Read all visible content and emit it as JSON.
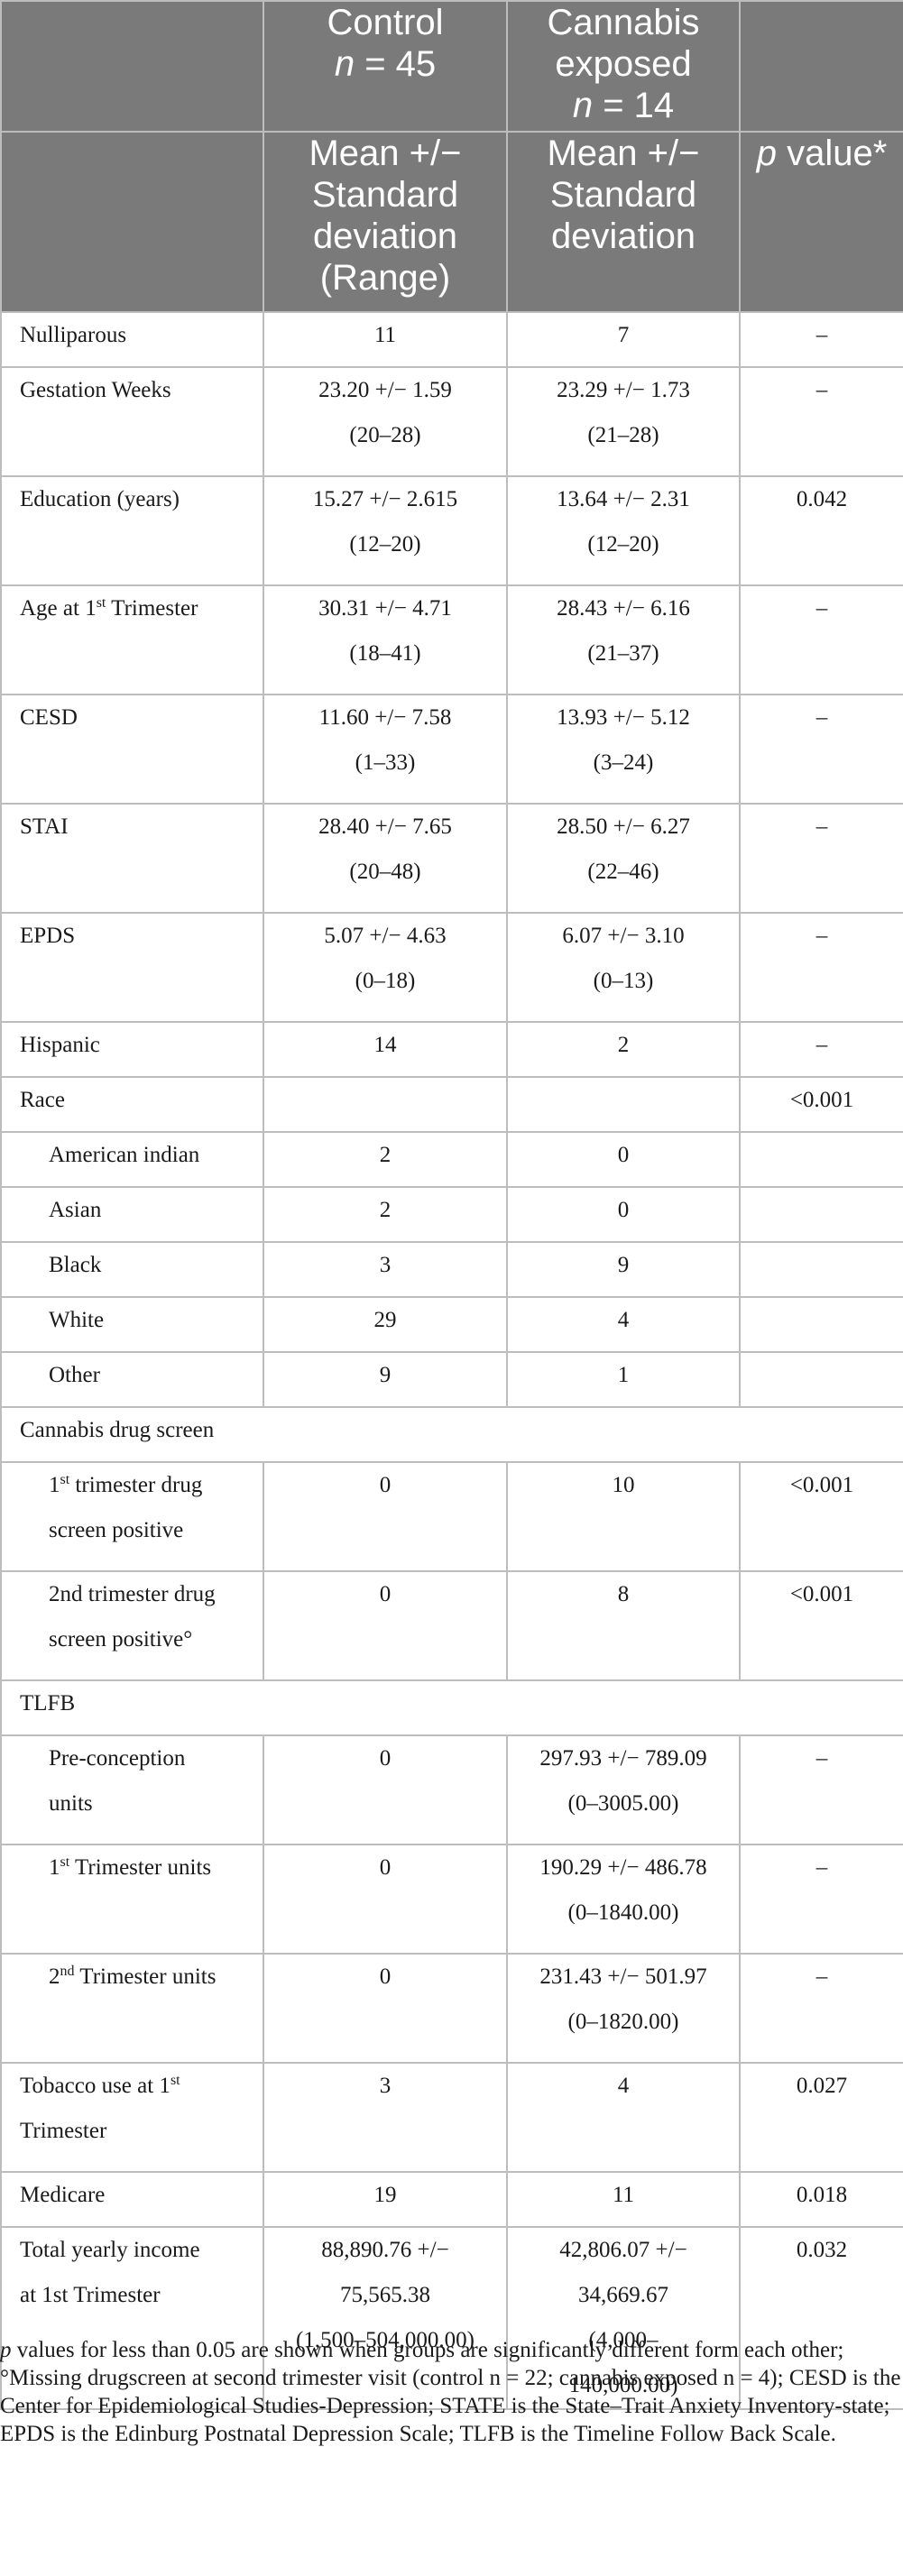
{
  "header": {
    "control": {
      "line1": "Control",
      "n_label": "n",
      "n_value": " = 45"
    },
    "cannabis": {
      "line1": "Cannabis",
      "line2": "exposed",
      "n_label": "n",
      "n_value": " = 14"
    },
    "sub_control": [
      "Mean +/−",
      "Standard",
      "deviation",
      "(Range)"
    ],
    "sub_cannabis": [
      "Mean +/−",
      "Standard",
      "deviation"
    ],
    "pvalue": {
      "p": "p",
      "rest": " value*"
    }
  },
  "rows": [
    {
      "label": [
        "Nulliparous"
      ],
      "control": [
        "11"
      ],
      "cannabis": [
        "7"
      ],
      "p": "–"
    },
    {
      "label": [
        "Gestation Weeks"
      ],
      "control": [
        "23.20 +/− 1.59",
        "(20–28)"
      ],
      "cannabis": [
        "23.29 +/− 1.73",
        "(21–28)"
      ],
      "p": "–"
    },
    {
      "label": [
        "Education (years)"
      ],
      "control": [
        "15.27 +/− 2.615",
        "(12–20)"
      ],
      "cannabis": [
        "13.64 +/− 2.31",
        "(12–20)"
      ],
      "p": "0.042"
    },
    {
      "label_pre": "Age at 1",
      "label_sup": "st",
      "label_post": " Trimester",
      "control": [
        "30.31 +/− 4.71",
        "(18–41)"
      ],
      "cannabis": [
        "28.43 +/− 6.16",
        "(21–37)"
      ],
      "p": "–"
    },
    {
      "label": [
        "CESD"
      ],
      "control": [
        "11.60 +/− 7.58",
        "(1–33)"
      ],
      "cannabis": [
        "13.93 +/− 5.12",
        "(3–24)"
      ],
      "p": "–"
    },
    {
      "label": [
        "STAI"
      ],
      "control": [
        "28.40 +/− 7.65",
        "(20–48)"
      ],
      "cannabis": [
        "28.50 +/− 6.27",
        "(22–46)"
      ],
      "p": "–"
    },
    {
      "label": [
        "EPDS"
      ],
      "control": [
        "5.07 +/− 4.63",
        "(0–18)"
      ],
      "cannabis": [
        "6.07 +/− 3.10",
        "(0–13)"
      ],
      "p": "–"
    },
    {
      "label": [
        "Hispanic"
      ],
      "control": [
        "14"
      ],
      "cannabis": [
        "2"
      ],
      "p": "–"
    },
    {
      "label": [
        "Race"
      ],
      "control": [
        ""
      ],
      "cannabis": [
        ""
      ],
      "p": "<0.001"
    },
    {
      "label": [
        "American indian"
      ],
      "control": [
        "2"
      ],
      "cannabis": [
        "0"
      ],
      "p": ""
    },
    {
      "label": [
        "Asian"
      ],
      "control": [
        "2"
      ],
      "cannabis": [
        "0"
      ],
      "p": ""
    },
    {
      "label": [
        "Black"
      ],
      "control": [
        "3"
      ],
      "cannabis": [
        "9"
      ],
      "p": ""
    },
    {
      "label": [
        "White"
      ],
      "control": [
        "29"
      ],
      "cannabis": [
        "4"
      ],
      "p": ""
    },
    {
      "label": [
        "Other"
      ],
      "control": [
        "9"
      ],
      "cannabis": [
        "1"
      ],
      "p": ""
    },
    {
      "label": [
        "Cannabis drug screen"
      ]
    },
    {
      "label_pre": "1",
      "label_sup": "st",
      "label_post": " trimester drug",
      "label_line2": "screen positive",
      "control": [
        "0"
      ],
      "cannabis": [
        "10"
      ],
      "p": "<0.001"
    },
    {
      "label": [
        "2nd trimester drug",
        "screen positive°"
      ],
      "control": [
        "0"
      ],
      "cannabis": [
        "8"
      ],
      "p": "<0.001"
    },
    {
      "label": [
        "TLFB"
      ]
    },
    {
      "label": [
        "Pre-conception",
        "units"
      ],
      "control": [
        "0"
      ],
      "cannabis": [
        "297.93 +/− 789.09",
        "(0–3005.00)"
      ],
      "p": "–"
    },
    {
      "label_pre": "1",
      "label_sup": "st",
      "label_post": " Trimester units",
      "control": [
        "0"
      ],
      "cannabis": [
        "190.29 +/− 486.78",
        "(0–1840.00)"
      ],
      "p": "–"
    },
    {
      "label_pre": "2",
      "label_sup": "nd",
      "label_post": " Trimester units",
      "control": [
        "0"
      ],
      "cannabis": [
        "231.43 +/− 501.97",
        "(0–1820.00)"
      ],
      "p": "–"
    },
    {
      "label_pre": "Tobacco use at 1",
      "label_sup": "st",
      "label_post": "",
      "label_line2": "Trimester",
      "control": [
        "3"
      ],
      "cannabis": [
        "4"
      ],
      "p": "0.027"
    },
    {
      "label": [
        "Medicare"
      ],
      "control": [
        "19"
      ],
      "cannabis": [
        "11"
      ],
      "p": "0.018"
    },
    {
      "label": [
        "Total yearly income",
        "at 1st Trimester"
      ],
      "control": [
        "88,890.76 +/−",
        "75,565.38",
        "(1,500–504,000.00)"
      ],
      "cannabis": [
        "42,806.07 +/−",
        "34,669.67",
        "(4,000–",
        "140,000.00)"
      ],
      "p": "0.032"
    }
  ],
  "footnote": {
    "p": "p",
    "text": " values for less than 0.05 are shown when groups are significantly different form each other; °Missing drugscreen at second trimester visit (control n = 22; cannabis exposed n = 4); CESD is the Center for Epidemiological Studies-Depression; STATE is the State–Trait Anxiety Inventory-state; EPDS is the Edinburg Postnatal Depression Scale; TLFB is the Timeline Follow Back Scale."
  }
}
